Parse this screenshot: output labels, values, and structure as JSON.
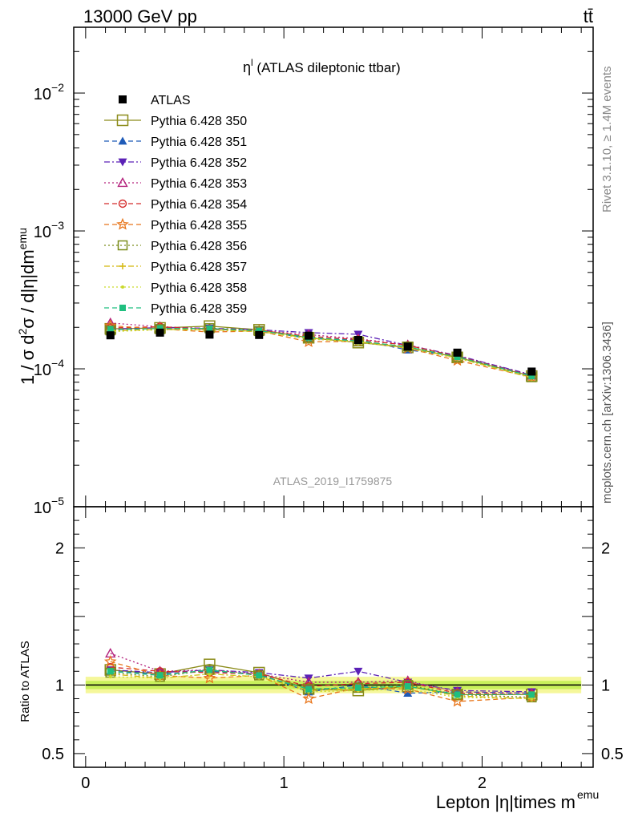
{
  "header": {
    "energy_label": "13000 GeV pp",
    "process_label": "tt̄"
  },
  "side_labels": {
    "rivet": "Rivet 3.1.10, ≥ 1.4M events",
    "mcplots": "mcplots.cern.ch [arXiv:1306.3436]"
  },
  "chart_data": [
    {
      "type": "line",
      "title": "η",
      "title_sup": "l",
      "title_rest": " (ATLAS dileptonic ttbar)",
      "analysis_label": "ATLAS_2019_I1759875",
      "ylabel": "1 / σ d²σ / d|η|dm^emu",
      "y_scale": "log",
      "ylim": [
        1e-05,
        0.03
      ],
      "xlim": [
        -0.06,
        2.56
      ],
      "y_tick_labels": [
        {
          "value": 0.01,
          "base": "10",
          "exp": "−2"
        },
        {
          "value": 0.001,
          "base": "10",
          "exp": "−3"
        },
        {
          "value": 0.0001,
          "base": "10",
          "exp": "−4"
        },
        {
          "value": 1e-05,
          "base": "10",
          "exp": "−5"
        }
      ],
      "legend_placement": "top-left",
      "x": [
        0.125,
        0.375,
        0.625,
        0.875,
        1.125,
        1.375,
        1.625,
        1.875,
        2.25
      ],
      "series": [
        {
          "name": "ATLAS",
          "color": "#000000",
          "marker": "square-filled",
          "dash": "none",
          "values": [
            0.000175,
            0.000183,
            0.000177,
            0.000176,
            0.000174,
            0.000162,
            0.000145,
            0.000131,
            9.55e-05
          ]
        },
        {
          "name": "Pythia 6.428 350",
          "color": "#8c8c1a",
          "marker": "square-open",
          "dash": "solid",
          "values": [
            0.000195,
            0.000198,
            0.000204,
            0.000192,
            0.000168,
            0.000155,
            0.000143,
            0.000121,
            8.85e-05
          ]
        },
        {
          "name": "Pythia 6.428 351",
          "color": "#1f5bb8",
          "marker": "triangle-filled",
          "dash": "dashed",
          "values": [
            0.000192,
            0.000197,
            0.000195,
            0.00019,
            0.000166,
            0.000162,
            0.000137,
            0.000124,
            9e-05
          ]
        },
        {
          "name": "Pythia 6.428 352",
          "color": "#5b21b6",
          "marker": "triangle-down-filled",
          "dash": "dashdot",
          "values": [
            0.000194,
            0.000199,
            0.000197,
            0.000192,
            0.000183,
            0.000178,
            0.000148,
            0.000125,
            9.05e-05
          ]
        },
        {
          "name": "Pythia 6.428 353",
          "color": "#b3207c",
          "marker": "triangle-open",
          "dash": "dotted",
          "values": [
            0.000215,
            0.000202,
            0.000196,
            0.00019,
            0.000177,
            0.000165,
            0.000149,
            0.000124,
            8.95e-05
          ]
        },
        {
          "name": "Pythia 6.428 354",
          "color": "#d42a2a",
          "marker": "circle-open",
          "dash": "dashed",
          "values": [
            0.000198,
            0.000202,
            0.000193,
            0.00019,
            0.000172,
            0.000163,
            0.000148,
            0.000123,
            8.9e-05
          ]
        },
        {
          "name": "Pythia 6.428 355",
          "color": "#e8751a",
          "marker": "star-open",
          "dash": "dashed",
          "values": [
            0.000205,
            0.000195,
            0.000185,
            0.000188,
            0.000157,
            0.000158,
            0.000141,
            0.000115,
            8.7e-05
          ]
        },
        {
          "name": "Pythia 6.428 356",
          "color": "#7a8c1a",
          "marker": "square-open",
          "dash": "dotted",
          "values": [
            0.00019,
            0.000194,
            0.000197,
            0.000188,
            0.000169,
            0.000158,
            0.000145,
            0.000122,
            8.7e-05
          ]
        },
        {
          "name": "Pythia 6.428 357",
          "color": "#d4b80f",
          "marker": "cross",
          "dash": "dashdot",
          "values": [
            0.000189,
            0.000193,
            0.000192,
            0.000187,
            0.000167,
            0.000157,
            0.000143,
            0.00012,
            8.6e-05
          ]
        },
        {
          "name": "Pythia 6.428 358",
          "color": "#c9d92b",
          "marker": "dot",
          "dash": "dotted",
          "values": [
            0.000186,
            0.000192,
            0.000191,
            0.000186,
            0.000165,
            0.000156,
            0.000141,
            0.000119,
            8.65e-05
          ]
        },
        {
          "name": "Pythia 6.428 359",
          "color": "#1fbf7f",
          "marker": "square-filled-small",
          "dash": "dashed",
          "values": [
            0.000193,
            0.000196,
            0.000196,
            0.000189,
            0.000169,
            0.000159,
            0.000144,
            0.000122,
            8.85e-05
          ]
        }
      ]
    },
    {
      "type": "line",
      "ylabel": "Ratio to ATLAS",
      "xlabel": "Lepton |η|times m",
      "xlabel_sup": "emu",
      "ylim": [
        0.4,
        2.3
      ],
      "xlim": [
        -0.06,
        2.56
      ],
      "x_tick_labels": [
        {
          "value": 0,
          "label": "0"
        },
        {
          "value": 1,
          "label": "1"
        },
        {
          "value": 2,
          "label": "2"
        }
      ],
      "y_tick_labels": [
        {
          "value": 2,
          "label": "2"
        },
        {
          "value": 1,
          "label": "1"
        },
        {
          "value": 0.5,
          "label": "0.5"
        }
      ],
      "reference_band": {
        "inner": [
          0.97,
          1.03
        ],
        "outer": [
          0.94,
          1.06
        ],
        "inner_color": "#c8f05a",
        "outer_color": "#f5f79a"
      },
      "ratio_series": [
        {
          "name": "Pythia 6.428 350",
          "values": [
            1.11,
            1.08,
            1.15,
            1.09,
            0.97,
            0.96,
            0.99,
            0.93,
            0.93
          ]
        },
        {
          "name": "Pythia 6.428 351",
          "values": [
            1.1,
            1.08,
            1.1,
            1.08,
            0.95,
            1.0,
            0.94,
            0.95,
            0.94
          ]
        },
        {
          "name": "Pythia 6.428 352",
          "values": [
            1.11,
            1.09,
            1.11,
            1.09,
            1.05,
            1.1,
            1.02,
            0.96,
            0.95
          ]
        },
        {
          "name": "Pythia 6.428 353",
          "values": [
            1.23,
            1.1,
            1.11,
            1.08,
            1.02,
            1.02,
            1.03,
            0.95,
            0.94
          ]
        },
        {
          "name": "Pythia 6.428 354",
          "values": [
            1.13,
            1.1,
            1.09,
            1.08,
            0.99,
            1.01,
            1.02,
            0.94,
            0.93
          ]
        },
        {
          "name": "Pythia 6.428 355",
          "values": [
            1.17,
            1.07,
            1.05,
            1.07,
            0.9,
            0.98,
            0.97,
            0.88,
            0.91
          ]
        },
        {
          "name": "Pythia 6.428 356",
          "values": [
            1.09,
            1.06,
            1.11,
            1.07,
            0.97,
            0.98,
            1.0,
            0.93,
            0.91
          ]
        },
        {
          "name": "Pythia 6.428 357",
          "values": [
            1.08,
            1.05,
            1.08,
            1.06,
            0.96,
            0.97,
            0.99,
            0.92,
            0.9
          ]
        },
        {
          "name": "Pythia 6.428 358",
          "values": [
            1.06,
            1.05,
            1.08,
            1.06,
            0.95,
            0.96,
            0.97,
            0.91,
            0.9
          ]
        },
        {
          "name": "Pythia 6.428 359",
          "values": [
            1.1,
            1.07,
            1.11,
            1.07,
            0.97,
            0.98,
            0.99,
            0.93,
            0.93
          ]
        }
      ]
    }
  ]
}
